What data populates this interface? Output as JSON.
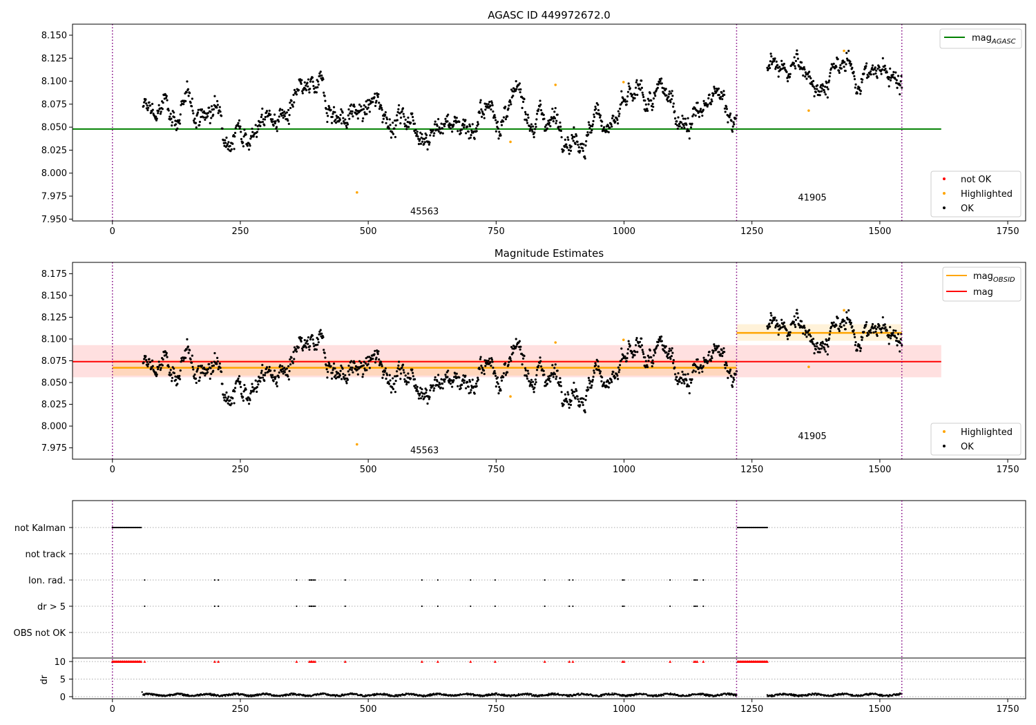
{
  "chart_data": [
    {
      "type": "scatter",
      "title": "AGASC ID 449972672.0",
      "xlim": [
        -78,
        1785
      ],
      "ylim": [
        7.948,
        8.162
      ],
      "xticks": [
        "0",
        "250",
        "500",
        "750",
        "1000",
        "1250",
        "1500",
        "1750"
      ],
      "yticks": [
        "7.950",
        "7.975",
        "8.000",
        "8.025",
        "8.050",
        "8.075",
        "8.100",
        "8.125",
        "8.150"
      ],
      "obsid_boundaries": [
        0,
        1220,
        1543
      ],
      "obsid_labels": [
        {
          "text": "45563",
          "x": 610,
          "y": 7.958
        },
        {
          "text": "41905",
          "x": 1368,
          "y": 7.973
        }
      ],
      "mag_agasc": 8.048,
      "mag_agasc_xrange": [
        -78,
        1620
      ],
      "legend_top": [
        {
          "label": "mag",
          "sub": "AGASC",
          "color": "#008000"
        }
      ],
      "legend_bottom": [
        {
          "label": "not OK",
          "color": "#ff0000"
        },
        {
          "label": "Highlighted",
          "color": "#ffa500"
        },
        {
          "label": "OK",
          "color": "#000000"
        }
      ],
      "segments": [
        {
          "x_start": 60,
          "x_end": 1220,
          "level": 8.066,
          "noise": 0.007
        },
        {
          "x_start": 1280,
          "x_end": 1543,
          "level": 8.108,
          "noise": 0.006
        }
      ],
      "highlighted": [
        [
          478,
          7.979
        ],
        [
          778,
          8.034
        ],
        [
          866,
          8.096
        ],
        [
          999,
          8.099
        ],
        [
          1361,
          8.068
        ],
        [
          1430,
          8.133
        ]
      ]
    },
    {
      "type": "scatter",
      "title": "Magnitude Estimates",
      "xlim": [
        -78,
        1785
      ],
      "ylim": [
        7.962,
        8.188
      ],
      "xticks": [
        "0",
        "250",
        "500",
        "750",
        "1000",
        "1250",
        "1500",
        "1750"
      ],
      "yticks": [
        "7.975",
        "8.000",
        "8.025",
        "8.050",
        "8.075",
        "8.100",
        "8.125",
        "8.150",
        "8.175"
      ],
      "obsid_labels": [
        {
          "text": "45563",
          "x": 610,
          "y": 7.972
        },
        {
          "text": "41905",
          "x": 1368,
          "y": 7.988
        }
      ],
      "mag": 8.074,
      "mag_band": [
        8.056,
        8.093
      ],
      "mag_xrange": [
        -78,
        1620
      ],
      "mag_obsid": [
        {
          "x_start": 0,
          "x_end": 1220,
          "value": 8.067,
          "band": [
            8.058,
            8.076
          ]
        },
        {
          "x_start": 1220,
          "x_end": 1543,
          "value": 8.107,
          "band": [
            8.098,
            8.117
          ]
        }
      ],
      "legend_top": [
        {
          "label": "mag",
          "sub": "OBSID",
          "color": "#ffa500"
        },
        {
          "label": "mag",
          "sub": "",
          "color": "#ff0000"
        }
      ],
      "legend_bottom": [
        {
          "label": "Highlighted",
          "color": "#ffa500"
        },
        {
          "label": "OK",
          "color": "#000000"
        }
      ]
    },
    {
      "type": "scatter",
      "title": "",
      "xlim": [
        -78,
        1785
      ],
      "xticks": [
        "0",
        "250",
        "500",
        "750",
        "1000",
        "1250",
        "1500",
        "1750"
      ],
      "flags": [
        "not Kalman",
        "not track",
        "Ion. rad.",
        "dr > 5",
        "OBS not OK"
      ],
      "not_kalman_ranges": [
        [
          0,
          57
        ],
        [
          1222,
          1280
        ]
      ],
      "event_times": [
        63,
        200,
        207,
        360,
        385,
        388,
        390,
        393,
        396,
        455,
        605,
        636,
        700,
        748,
        845,
        893,
        900,
        997,
        1000,
        1090,
        1137,
        1140,
        1143,
        1155
      ],
      "dr_label": "dr",
      "dr_yticks": [
        "0",
        "5",
        "10"
      ],
      "dr_ylim": [
        -0.6,
        11
      ]
    }
  ]
}
